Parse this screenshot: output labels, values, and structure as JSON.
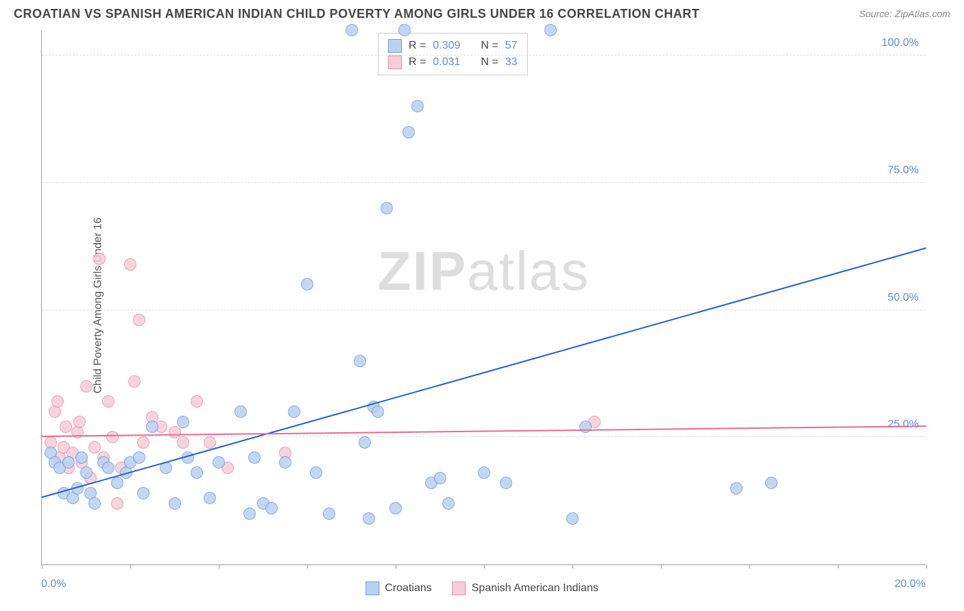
{
  "chart": {
    "type": "scatter",
    "title": "CROATIAN VS SPANISH AMERICAN INDIAN CHILD POVERTY AMONG GIRLS UNDER 16 CORRELATION CHART",
    "source": "Source: ZipAtlas.com",
    "ylabel": "Child Poverty Among Girls Under 16",
    "watermark_a": "ZIP",
    "watermark_b": "atlas",
    "background_color": "#ffffff",
    "grid_color": "#dddddd",
    "axis_color": "#999999",
    "tick_label_color": "#5b8fd6",
    "title_fontsize": 18,
    "label_fontsize": 16,
    "tick_fontsize": 16,
    "xlim": [
      0,
      20
    ],
    "ylim": [
      0,
      105
    ],
    "ytick_positions": [
      25,
      50,
      75,
      100
    ],
    "ytick_labels": [
      "25.0%",
      "50.0%",
      "75.0%",
      "100.0%"
    ],
    "xtick_positions": [
      0,
      2,
      4,
      6,
      8,
      10,
      12,
      14,
      16,
      18,
      20
    ],
    "xtick_label_left": "0.0%",
    "xtick_label_right": "20.0%",
    "point_radius": 9,
    "series": [
      {
        "name": "Croatians",
        "fill_color": "#b9d1f0",
        "stroke_color": "#6a9de0",
        "trend_color": "#1f5fd6",
        "r_label": "R =",
        "r_value": "0.309",
        "n_label": "N =",
        "n_value": "57",
        "trend": {
          "x1": 0,
          "y1": 13,
          "x2": 20,
          "y2": 62
        },
        "points": [
          {
            "x": 0.2,
            "y": 22
          },
          {
            "x": 0.3,
            "y": 20
          },
          {
            "x": 0.4,
            "y": 19
          },
          {
            "x": 0.5,
            "y": 14
          },
          {
            "x": 0.6,
            "y": 20
          },
          {
            "x": 0.7,
            "y": 13
          },
          {
            "x": 0.8,
            "y": 15
          },
          {
            "x": 0.9,
            "y": 21
          },
          {
            "x": 1.0,
            "y": 18
          },
          {
            "x": 1.1,
            "y": 14
          },
          {
            "x": 1.2,
            "y": 12
          },
          {
            "x": 1.4,
            "y": 20
          },
          {
            "x": 1.5,
            "y": 19
          },
          {
            "x": 1.7,
            "y": 16
          },
          {
            "x": 1.9,
            "y": 18
          },
          {
            "x": 2.0,
            "y": 20
          },
          {
            "x": 2.2,
            "y": 21
          },
          {
            "x": 2.3,
            "y": 14
          },
          {
            "x": 2.5,
            "y": 27
          },
          {
            "x": 2.8,
            "y": 19
          },
          {
            "x": 3.0,
            "y": 12
          },
          {
            "x": 3.2,
            "y": 28
          },
          {
            "x": 3.3,
            "y": 21
          },
          {
            "x": 3.5,
            "y": 18
          },
          {
            "x": 3.8,
            "y": 13
          },
          {
            "x": 4.0,
            "y": 20
          },
          {
            "x": 4.5,
            "y": 30
          },
          {
            "x": 4.7,
            "y": 10
          },
          {
            "x": 4.8,
            "y": 21
          },
          {
            "x": 5.0,
            "y": 12
          },
          {
            "x": 5.2,
            "y": 11
          },
          {
            "x": 5.5,
            "y": 20
          },
          {
            "x": 5.7,
            "y": 30
          },
          {
            "x": 6.0,
            "y": 55
          },
          {
            "x": 6.2,
            "y": 18
          },
          {
            "x": 6.5,
            "y": 10
          },
          {
            "x": 7.0,
            "y": 105
          },
          {
            "x": 7.2,
            "y": 40
          },
          {
            "x": 7.3,
            "y": 24
          },
          {
            "x": 7.4,
            "y": 9
          },
          {
            "x": 7.5,
            "y": 31
          },
          {
            "x": 7.6,
            "y": 30
          },
          {
            "x": 7.8,
            "y": 70
          },
          {
            "x": 8.0,
            "y": 11
          },
          {
            "x": 8.2,
            "y": 105
          },
          {
            "x": 8.3,
            "y": 85
          },
          {
            "x": 8.5,
            "y": 90
          },
          {
            "x": 8.8,
            "y": 16
          },
          {
            "x": 9.0,
            "y": 17
          },
          {
            "x": 9.2,
            "y": 12
          },
          {
            "x": 10.0,
            "y": 18
          },
          {
            "x": 10.5,
            "y": 16
          },
          {
            "x": 11.5,
            "y": 105
          },
          {
            "x": 12.0,
            "y": 9
          },
          {
            "x": 12.3,
            "y": 27
          },
          {
            "x": 15.7,
            "y": 15
          },
          {
            "x": 16.5,
            "y": 16
          }
        ]
      },
      {
        "name": "Spanish American Indians",
        "fill_color": "#f6cdd8",
        "stroke_color": "#e98fa8",
        "trend_color": "#e86a8e",
        "r_label": "R =",
        "r_value": "0.031",
        "n_label": "N =",
        "n_value": "33",
        "trend": {
          "x1": 0,
          "y1": 25,
          "x2": 20,
          "y2": 27
        },
        "points": [
          {
            "x": 0.2,
            "y": 24
          },
          {
            "x": 0.3,
            "y": 30
          },
          {
            "x": 0.35,
            "y": 32
          },
          {
            "x": 0.4,
            "y": 21
          },
          {
            "x": 0.5,
            "y": 23
          },
          {
            "x": 0.55,
            "y": 27
          },
          {
            "x": 0.6,
            "y": 19
          },
          {
            "x": 0.7,
            "y": 22
          },
          {
            "x": 0.8,
            "y": 26
          },
          {
            "x": 0.85,
            "y": 28
          },
          {
            "x": 0.9,
            "y": 20
          },
          {
            "x": 1.0,
            "y": 35
          },
          {
            "x": 1.1,
            "y": 17
          },
          {
            "x": 1.2,
            "y": 23
          },
          {
            "x": 1.3,
            "y": 60
          },
          {
            "x": 1.4,
            "y": 21
          },
          {
            "x": 1.5,
            "y": 32
          },
          {
            "x": 1.6,
            "y": 25
          },
          {
            "x": 1.7,
            "y": 12
          },
          {
            "x": 1.8,
            "y": 19
          },
          {
            "x": 2.0,
            "y": 59
          },
          {
            "x": 2.1,
            "y": 36
          },
          {
            "x": 2.2,
            "y": 48
          },
          {
            "x": 2.3,
            "y": 24
          },
          {
            "x": 2.5,
            "y": 29
          },
          {
            "x": 2.7,
            "y": 27
          },
          {
            "x": 3.0,
            "y": 26
          },
          {
            "x": 3.2,
            "y": 24
          },
          {
            "x": 3.5,
            "y": 32
          },
          {
            "x": 3.8,
            "y": 24
          },
          {
            "x": 4.2,
            "y": 19
          },
          {
            "x": 5.5,
            "y": 22
          },
          {
            "x": 12.5,
            "y": 28
          }
        ]
      }
    ],
    "legend_bottom": [
      {
        "label": "Croatians",
        "fill": "#b9d1f0",
        "stroke": "#6a9de0"
      },
      {
        "label": "Spanish American Indians",
        "fill": "#f6cdd8",
        "stroke": "#e98fa8"
      }
    ]
  }
}
